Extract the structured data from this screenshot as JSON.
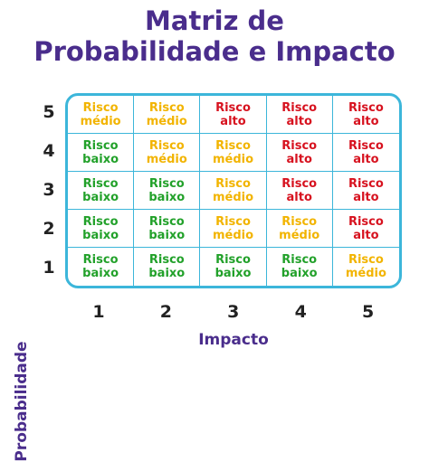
{
  "title": "Matriz de\nProbabilidade e Impacto",
  "x_axis": {
    "label": "Impacto",
    "ticks": [
      "1",
      "2",
      "3",
      "4",
      "5"
    ]
  },
  "y_axis": {
    "label": "Probabilidade",
    "ticks": [
      "5",
      "4",
      "3",
      "2",
      "1"
    ]
  },
  "colors": {
    "baixo": "#22a12a",
    "medio": "#f2b400",
    "alto": "#d7121f",
    "border": "#3cb6da",
    "title": "#4a2d8c"
  },
  "matrix": [
    [
      "Risco\nmédio",
      "Risco\nmédio",
      "Risco\nalto",
      "Risco\nalto",
      "Risco\nalto"
    ],
    [
      "Risco\nbaixo",
      "Risco\nmédio",
      "Risco\nmédio",
      "Risco\nalto",
      "Risco\nalto"
    ],
    [
      "Risco\nbaixo",
      "Risco\nbaixo",
      "Risco\nmédio",
      "Risco\nalto",
      "Risco\nalto"
    ],
    [
      "Risco\nbaixo",
      "Risco\nbaixo",
      "Risco\nmédio",
      "Risco\nmédio",
      "Risco\nalto"
    ],
    [
      "Risco\nbaixo",
      "Risco\nbaixo",
      "Risco\nbaixo",
      "Risco\nbaixo",
      "Risco\nmédio"
    ]
  ]
}
